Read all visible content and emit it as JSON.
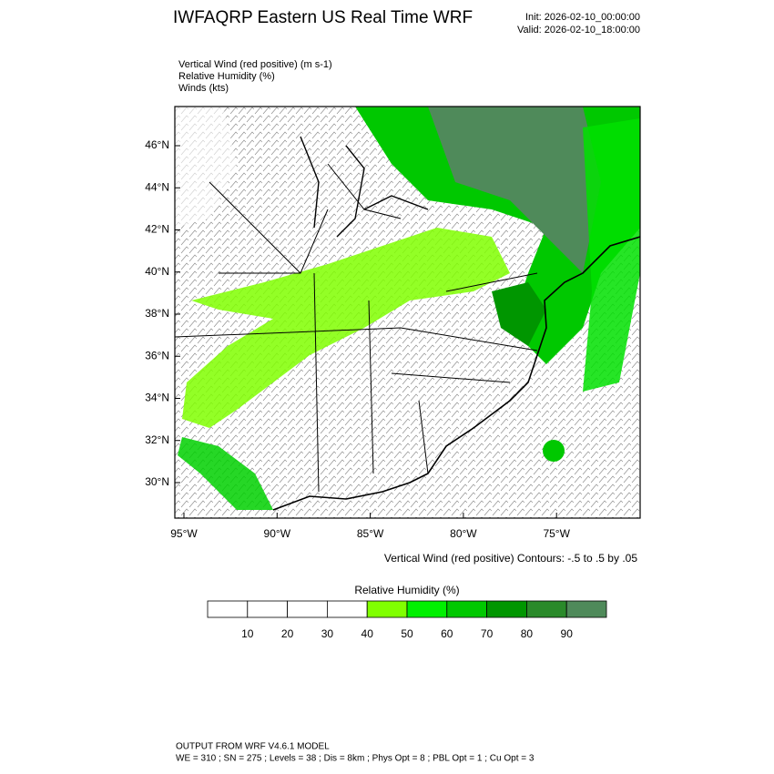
{
  "header": {
    "title": "IWFAQRP Eastern US Real Time WRF",
    "init": "Init: 2026-02-10_00:00:00",
    "valid": "Valid: 2026-02-10_18:00:00"
  },
  "fields": [
    "Vertical Wind (red positive)   (m s-1)",
    "Relative Humidity   (%)",
    "Winds   (kts)"
  ],
  "map": {
    "lat_labels": [
      "46°N",
      "44°N",
      "42°N",
      "40°N",
      "38°N",
      "36°N",
      "34°N",
      "32°N",
      "30°N"
    ],
    "lon_labels": [
      "95°W",
      "90°W",
      "85°W",
      "80°W",
      "75°W"
    ],
    "contour_note": "Vertical Wind (red positive) Contours: -.5 to .5 by .05"
  },
  "colorbar": {
    "title": "Relative Humidity   (%)",
    "labels": [
      "10",
      "20",
      "30",
      "40",
      "50",
      "60",
      "70",
      "80",
      "90"
    ],
    "colors": [
      "#ffffff",
      "#ffffff",
      "#ffffff",
      "#ffffff",
      "#80ff00",
      "#00f000",
      "#00c800",
      "#009600",
      "#2a8a2a",
      "#4f8a5a"
    ]
  },
  "footer": {
    "line1": "OUTPUT FROM WRF V4.6.1 MODEL",
    "line2": "WE = 310 ; SN = 275 ; Levels = 38 ; Dis = 8km ; Phys Opt = 8 ; PBL Opt = 1 ; Cu Opt = 3"
  }
}
